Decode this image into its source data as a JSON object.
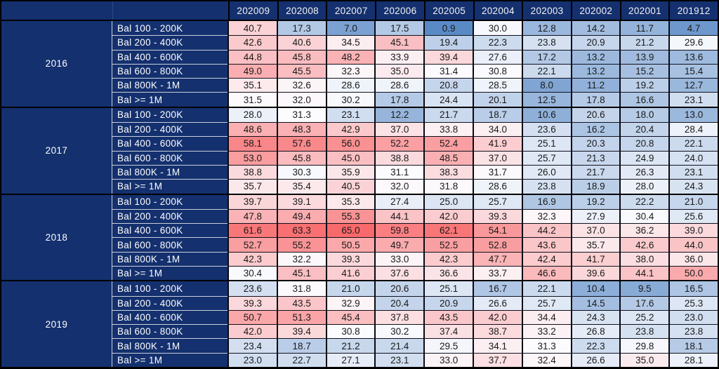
{
  "chart_data": {
    "type": "heatmap",
    "title": "",
    "columns": [
      "202009",
      "202008",
      "202007",
      "202006",
      "202005",
      "202004",
      "202003",
      "202002",
      "202001",
      "201912"
    ],
    "row_groups": [
      {
        "year": "2016",
        "rows": [
          {
            "label": "Bal 100 - 200K",
            "values": [
              40.7,
              17.3,
              7.0,
              17.5,
              0.9,
              30.0,
              12.8,
              14.2,
              11.7,
              4.7
            ]
          },
          {
            "label": "Bal 200 - 400K",
            "values": [
              42.6,
              40.6,
              34.5,
              45.1,
              19.4,
              22.3,
              23.8,
              20.9,
              21.2,
              29.6
            ]
          },
          {
            "label": "Bal 400 - 600K",
            "values": [
              44.8,
              45.8,
              48.2,
              33.9,
              39.4,
              27.6,
              17.2,
              13.2,
              13.9,
              13.6
            ]
          },
          {
            "label": "Bal 600 - 800K",
            "values": [
              49.0,
              45.5,
              32.3,
              35.0,
              31.4,
              30.8,
              22.1,
              13.2,
              15.2,
              15.4
            ]
          },
          {
            "label": "Bal 800K - 1M",
            "values": [
              35.1,
              32.6,
              28.6,
              28.6,
              20.8,
              28.5,
              8.0,
              11.2,
              19.2,
              12.7
            ]
          },
          {
            "label": "Bal >= 1M",
            "values": [
              31.5,
              32.0,
              30.2,
              17.8,
              24.4,
              20.1,
              12.5,
              17.8,
              16.6,
              23.1
            ]
          }
        ]
      },
      {
        "year": "2017",
        "rows": [
          {
            "label": "Bal 100 - 200K",
            "values": [
              28.0,
              31.3,
              23.1,
              12.2,
              21.7,
              18.7,
              10.6,
              20.6,
              18.0,
              13.0
            ]
          },
          {
            "label": "Bal 200 - 400K",
            "values": [
              48.6,
              48.3,
              42.9,
              37.0,
              33.8,
              34.0,
              23.6,
              16.2,
              20.4,
              28.4
            ]
          },
          {
            "label": "Bal 400 - 600K",
            "values": [
              58.1,
              57.6,
              56.0,
              52.2,
              52.4,
              41.9,
              25.1,
              20.3,
              20.8,
              22.1
            ]
          },
          {
            "label": "Bal 600 - 800K",
            "values": [
              53.0,
              45.8,
              45.0,
              38.8,
              48.5,
              37.0,
              25.7,
              21.3,
              24.9,
              24.0
            ]
          },
          {
            "label": "Bal 800K - 1M",
            "values": [
              38.8,
              30.3,
              35.9,
              31.1,
              38.3,
              31.7,
              26.0,
              21.7,
              26.3,
              23.1
            ]
          },
          {
            "label": "Bal >= 1M",
            "values": [
              35.7,
              35.4,
              40.5,
              32.0,
              31.8,
              28.6,
              23.8,
              18.9,
              28.0,
              24.3
            ]
          }
        ]
      },
      {
        "year": "2018",
        "rows": [
          {
            "label": "Bal 100 - 200K",
            "values": [
              39.7,
              39.1,
              35.3,
              27.4,
              25.0,
              25.7,
              16.9,
              19.2,
              22.2,
              21.0
            ]
          },
          {
            "label": "Bal 200 - 400K",
            "values": [
              47.8,
              49.4,
              55.3,
              44.1,
              42.0,
              39.3,
              32.3,
              27.9,
              30.4,
              25.6
            ]
          },
          {
            "label": "Bal 400 - 600K",
            "values": [
              61.6,
              63.3,
              65.0,
              59.8,
              62.1,
              54.1,
              44.2,
              37.0,
              36.2,
              39.0
            ]
          },
          {
            "label": "Bal 600 - 800K",
            "values": [
              52.7,
              55.2,
              50.5,
              49.7,
              52.5,
              52.8,
              43.6,
              35.7,
              42.6,
              44.0
            ]
          },
          {
            "label": "Bal 800K - 1M",
            "values": [
              42.3,
              32.2,
              39.3,
              33.0,
              42.3,
              47.7,
              42.4,
              41.7,
              38.0,
              36.0
            ]
          },
          {
            "label": "Bal >= 1M",
            "values": [
              30.4,
              45.1,
              41.6,
              37.6,
              36.6,
              33.7,
              46.6,
              39.6,
              44.1,
              50.0
            ]
          }
        ]
      },
      {
        "year": "2019",
        "rows": [
          {
            "label": "Bal 100 - 200K",
            "values": [
              23.6,
              31.8,
              21.0,
              20.6,
              25.1,
              16.7,
              22.1,
              10.4,
              9.5,
              16.5
            ]
          },
          {
            "label": "Bal 200 - 400K",
            "values": [
              39.3,
              43.5,
              32.9,
              20.4,
              20.9,
              26.6,
              25.7,
              14.5,
              17.6,
              25.3
            ]
          },
          {
            "label": "Bal 400 - 600K",
            "values": [
              50.7,
              51.3,
              45.4,
              37.8,
              43.5,
              42.0,
              34.4,
              24.3,
              25.2,
              23.0
            ]
          },
          {
            "label": "Bal 600 - 800K",
            "values": [
              42.0,
              39.4,
              30.8,
              30.2,
              37.4,
              38.7,
              33.2,
              26.8,
              23.8,
              23.8
            ]
          },
          {
            "label": "Bal 800K - 1M",
            "values": [
              23.4,
              18.7,
              21.2,
              21.4,
              29.5,
              34.1,
              31.3,
              22.3,
              29.8,
              18.1
            ]
          },
          {
            "label": "Bal >= 1M",
            "values": [
              23.0,
              22.7,
              27.1,
              23.1,
              33.0,
              37.7,
              32.4,
              26.6,
              35.0,
              28.1
            ]
          }
        ]
      }
    ],
    "color_scale": {
      "min_value": 0.9,
      "mid_value": 31.0,
      "max_value": 65.0,
      "min_color": "#5A8AC6",
      "mid_color": "#FCFCFF",
      "max_color": "#F8696B"
    },
    "layout": {
      "legend": "none",
      "grid": "on",
      "value_format": "one-decimal"
    }
  },
  "colors": {
    "header_bg": "#14306e",
    "header_text": "#f2f2f2",
    "label_text": "#ffffff",
    "value_text": "#1a1a1a",
    "grid_border": "#000000",
    "label_divider": "#c9cfdb"
  }
}
